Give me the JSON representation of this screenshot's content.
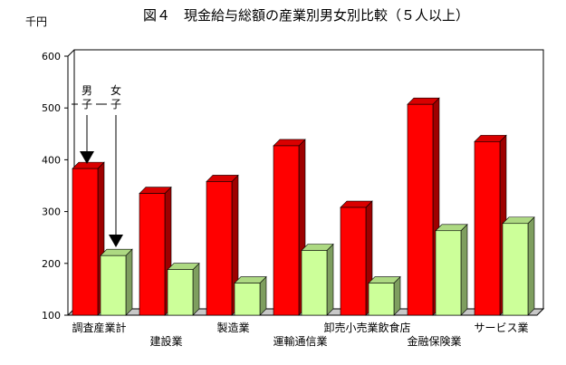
{
  "chart_data": {
    "type": "bar",
    "title": "図４　現金給与総額の産業別男女別比較（５人以上）",
    "unit_label": "千円",
    "categories": [
      "調査産業計",
      "建設業",
      "製造業",
      "運輸通信業",
      "卸売小売業飲食店",
      "金融保険業",
      "サービス業"
    ],
    "series": [
      {
        "name": "男子",
        "color": "#ff0000",
        "values": [
          383,
          335,
          358,
          427,
          308,
          507,
          435
        ]
      },
      {
        "name": "女子",
        "color": "#ccff99",
        "values": [
          215,
          188,
          162,
          225,
          162,
          263,
          277
        ]
      }
    ],
    "ylim": [
      100,
      600
    ],
    "yticks": [
      "100",
      "200",
      "300",
      "400",
      "500",
      "600"
    ],
    "grid": false,
    "legend_placement": "top-left",
    "legend": {
      "male_label": "男子",
      "female_label": "女子"
    }
  }
}
